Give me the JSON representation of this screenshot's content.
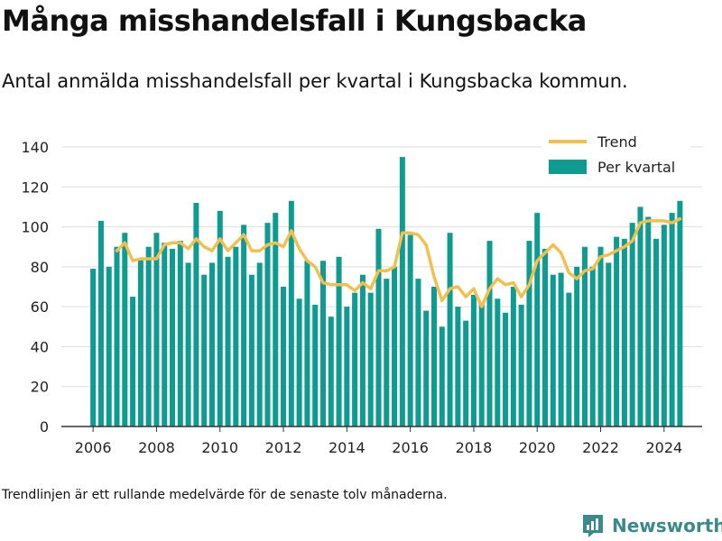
{
  "title": "Många misshandelsfall i Kungsbacka",
  "subtitle": "Antal anmälda misshandelsfall per kvartal i Kungsbacka kommun.",
  "footnote": "Trendlinjen är ett rullande medelvärde för de senaste tolv månaderna.",
  "brand": {
    "name": "Newsworthy",
    "icon": "newsworthy-logo-icon"
  },
  "colors": {
    "bar": "#0e9b91",
    "trend": "#f2c050",
    "grid": "#dddddd",
    "axis": "#333333"
  },
  "chart_data": {
    "type": "bar",
    "x_unit": "year (quarter start)",
    "ylim": [
      0,
      140
    ],
    "yticks": [
      0,
      20,
      40,
      60,
      80,
      100,
      120,
      140
    ],
    "xlim": [
      2005.0,
      2025.2
    ],
    "xticks": [
      2006,
      2008,
      2010,
      2012,
      2014,
      2016,
      2018,
      2020,
      2022,
      2024
    ],
    "grid": true,
    "legend_position": "top-right",
    "legend": [
      "Trend",
      "Per kvartal"
    ],
    "series": [
      {
        "name": "Per kvartal",
        "kind": "bar",
        "x": [
          2006.0,
          2006.25,
          2006.5,
          2006.75,
          2007.0,
          2007.25,
          2007.5,
          2007.75,
          2008.0,
          2008.25,
          2008.5,
          2008.75,
          2009.0,
          2009.25,
          2009.5,
          2009.75,
          2010.0,
          2010.25,
          2010.5,
          2010.75,
          2011.0,
          2011.25,
          2011.5,
          2011.75,
          2012.0,
          2012.25,
          2012.5,
          2012.75,
          2013.0,
          2013.25,
          2013.5,
          2013.75,
          2014.0,
          2014.25,
          2014.5,
          2014.75,
          2015.0,
          2015.25,
          2015.5,
          2015.75,
          2016.0,
          2016.25,
          2016.5,
          2016.75,
          2017.0,
          2017.25,
          2017.5,
          2017.75,
          2018.0,
          2018.25,
          2018.5,
          2018.75,
          2019.0,
          2019.25,
          2019.5,
          2019.75,
          2020.0,
          2020.25,
          2020.5,
          2020.75,
          2021.0,
          2021.25,
          2021.5,
          2021.75,
          2022.0,
          2022.25,
          2022.5,
          2022.75,
          2023.0,
          2023.25,
          2023.5,
          2023.75,
          2024.0,
          2024.25,
          2024.5
        ],
        "values": [
          79,
          103,
          80,
          90,
          97,
          65,
          84,
          90,
          97,
          92,
          89,
          93,
          82,
          112,
          76,
          82,
          108,
          85,
          90,
          101,
          76,
          82,
          102,
          107,
          70,
          113,
          64,
          83,
          61,
          83,
          55,
          85,
          60,
          67,
          76,
          67,
          99,
          74,
          80,
          135,
          96,
          74,
          58,
          70,
          50,
          97,
          60,
          53,
          66,
          62,
          93,
          64,
          57,
          70,
          61,
          93,
          107,
          89,
          76,
          77,
          67,
          80,
          90,
          80,
          90,
          82,
          95,
          94,
          102,
          110,
          105,
          94,
          101,
          107,
          113
        ]
      },
      {
        "name": "Trend",
        "kind": "line",
        "x": [
          2006.75,
          2007.0,
          2007.25,
          2007.5,
          2007.75,
          2008.0,
          2008.25,
          2008.5,
          2008.75,
          2009.0,
          2009.25,
          2009.5,
          2009.75,
          2010.0,
          2010.25,
          2010.5,
          2010.75,
          2011.0,
          2011.25,
          2011.5,
          2011.75,
          2012.0,
          2012.25,
          2012.5,
          2012.75,
          2013.0,
          2013.25,
          2013.5,
          2013.75,
          2014.0,
          2014.25,
          2014.5,
          2014.75,
          2015.0,
          2015.25,
          2015.5,
          2015.75,
          2016.0,
          2016.25,
          2016.5,
          2016.75,
          2017.0,
          2017.25,
          2017.5,
          2017.75,
          2018.0,
          2018.25,
          2018.5,
          2018.75,
          2019.0,
          2019.25,
          2019.5,
          2019.75,
          2020.0,
          2020.25,
          2020.5,
          2020.75,
          2021.0,
          2021.25,
          2021.5,
          2021.75,
          2022.0,
          2022.25,
          2022.5,
          2022.75,
          2023.0,
          2023.25,
          2023.5,
          2023.75,
          2024.0,
          2024.25,
          2024.5
        ],
        "values": [
          88,
          92,
          83,
          84,
          84,
          84,
          91,
          92,
          92,
          89,
          94,
          90,
          88,
          94,
          88,
          92,
          96,
          88,
          88,
          91,
          92,
          90,
          98,
          89,
          83,
          80,
          72,
          71,
          71,
          71,
          68,
          72,
          69,
          78,
          78,
          80,
          97,
          97,
          96,
          91,
          75,
          63,
          69,
          70,
          65,
          69,
          60,
          69,
          74,
          71,
          72,
          65,
          71,
          83,
          87,
          91,
          87,
          77,
          74,
          78,
          79,
          85,
          86,
          88,
          90,
          93,
          102,
          103,
          103,
          103,
          102,
          104
        ]
      }
    ]
  }
}
